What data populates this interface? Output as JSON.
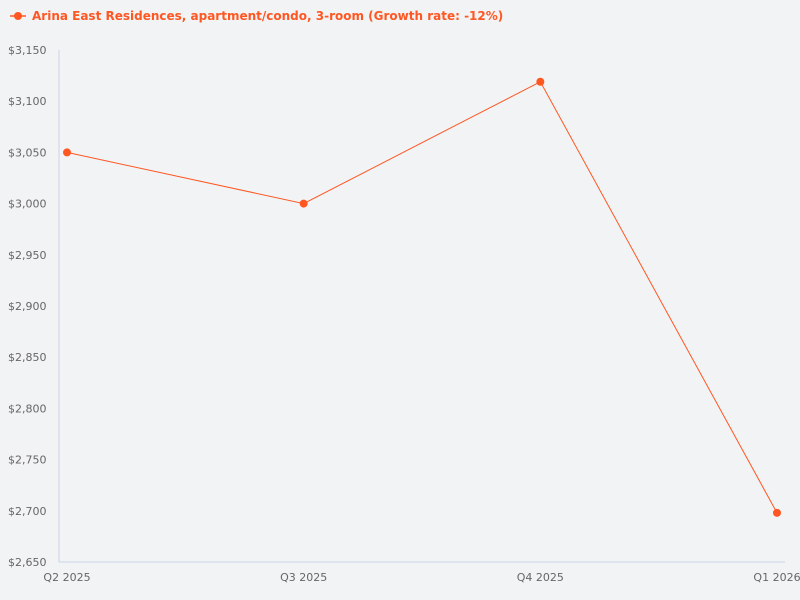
{
  "chart_data": {
    "type": "line",
    "categories": [
      "Q2 2025",
      "Q3 2025",
      "Q4 2025",
      "Q1 2026"
    ],
    "series": [
      {
        "name": "Arina East Residences, apartment/condo, 3-room (Growth rate: -12%)",
        "values": [
          3050,
          3000,
          3119,
          2698
        ],
        "color": "#ff5722"
      }
    ],
    "ylim": [
      2650,
      3150
    ],
    "yticks": [
      2650,
      2700,
      2750,
      2800,
      2850,
      2900,
      2950,
      3000,
      3050,
      3100,
      3150
    ],
    "ytick_format": "$#,###",
    "grid": false,
    "legend": "top-left",
    "xlabel": "",
    "ylabel": "",
    "title": ""
  }
}
